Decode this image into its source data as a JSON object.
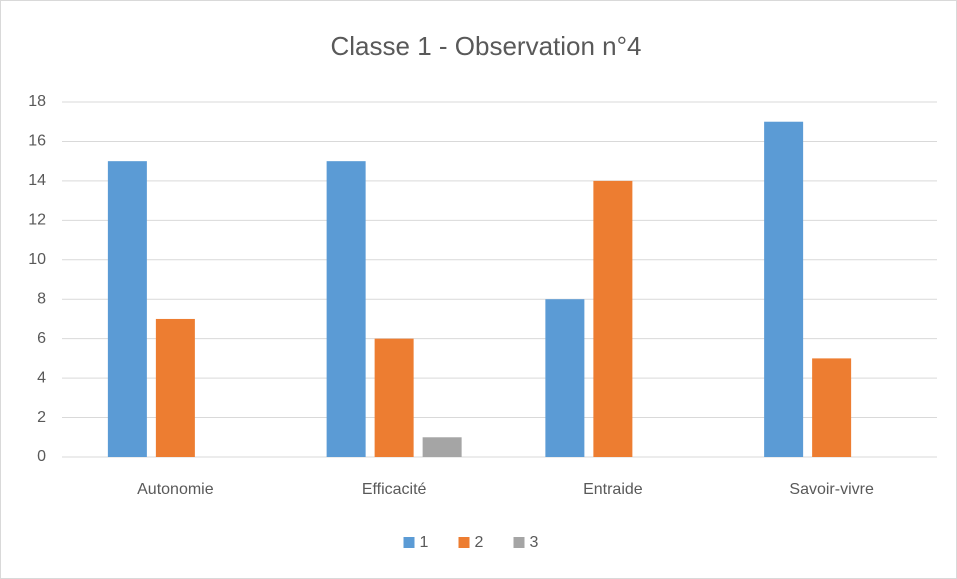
{
  "chart_data": {
    "type": "bar",
    "title": "Classe 1 - Observation n°4",
    "categories": [
      "Autonomie",
      "Efficacité",
      "Entraide",
      "Savoir-vivre"
    ],
    "series": [
      {
        "name": "1",
        "color": "#5b9bd5",
        "values": [
          15,
          15,
          8,
          17
        ]
      },
      {
        "name": "2",
        "color": "#ed7d31",
        "values": [
          7,
          6,
          14,
          5
        ]
      },
      {
        "name": "3",
        "color": "#a5a5a5",
        "values": [
          0,
          1,
          0,
          0
        ]
      }
    ],
    "ylim": [
      0,
      18
    ],
    "yticks": [
      0,
      2,
      4,
      6,
      8,
      10,
      12,
      14,
      16,
      18
    ],
    "grid": true,
    "legend": "bottom"
  }
}
